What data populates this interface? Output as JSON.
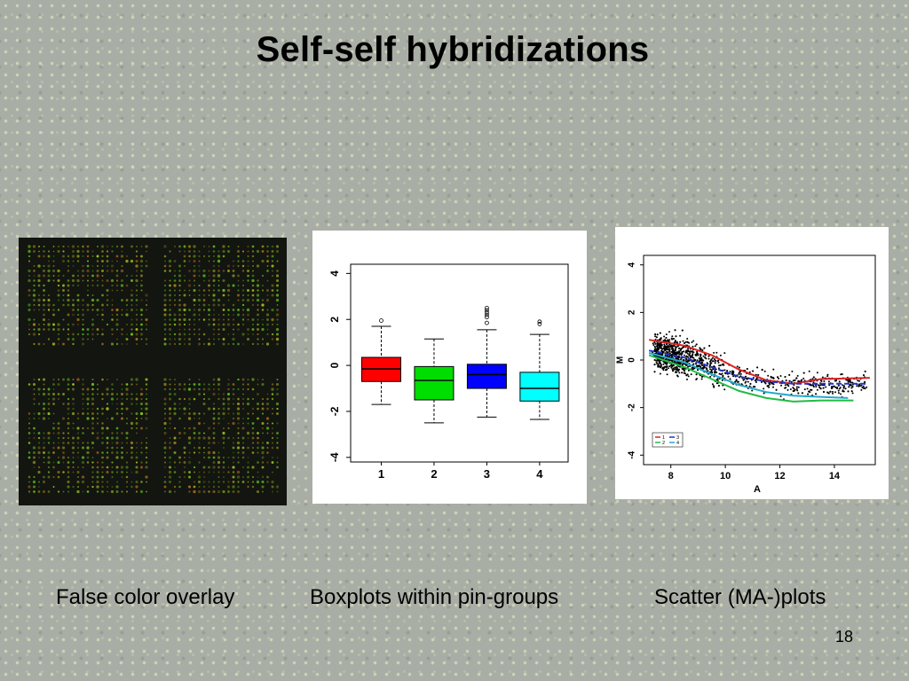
{
  "slide": {
    "title": "Self-self hybridizations",
    "page_number": "18"
  },
  "panels": {
    "overlay_caption": "False color overlay",
    "boxplot_caption": "Boxplots within pin-groups",
    "scatter_caption": "Scatter (MA-)plots"
  },
  "chart_data": [
    {
      "type": "box",
      "categories": [
        "1",
        "2",
        "3",
        "4"
      ],
      "colors": [
        "#ff0000",
        "#00dd00",
        "#0000ff",
        "#00ffff"
      ],
      "boxes": [
        {
          "whisker_low": -1.7,
          "q1": -0.7,
          "median": -0.15,
          "q3": 0.35,
          "whisker_high": 1.7,
          "outliers": [
            1.95
          ]
        },
        {
          "whisker_low": -2.5,
          "q1": -1.5,
          "median": -0.65,
          "q3": -0.05,
          "whisker_high": 1.15,
          "outliers": []
        },
        {
          "whisker_low": -2.25,
          "q1": -1.0,
          "median": -0.4,
          "q3": 0.05,
          "whisker_high": 1.55,
          "outliers": [
            1.85,
            2.1,
            2.2,
            2.3,
            2.4,
            2.5
          ]
        },
        {
          "whisker_low": -2.35,
          "q1": -1.55,
          "median": -1.0,
          "q3": -0.3,
          "whisker_high": 1.35,
          "outliers": [
            1.8,
            1.9
          ]
        }
      ],
      "yticks": [
        "-4",
        "-2",
        "0",
        "2",
        "4"
      ],
      "ylim": [
        -4.2,
        4.4
      ],
      "xlabel": "",
      "ylabel": "",
      "grid": false
    },
    {
      "type": "scatter",
      "xlabel": "A",
      "ylabel": "M",
      "xticks": [
        "8",
        "10",
        "12",
        "14"
      ],
      "yticks": [
        "-4",
        "-2",
        "0",
        "2",
        "4"
      ],
      "xlim": [
        7,
        15.5
      ],
      "ylim": [
        -4.4,
        4.4
      ],
      "legend": {
        "position": "bottom-left",
        "entries": [
          "1",
          "2",
          "3",
          "4"
        ]
      },
      "series": [
        {
          "name": "1",
          "color": "#dd2222",
          "x": [
            7.2,
            8.5,
            9.5,
            10.5,
            11.5,
            12.5,
            13.5,
            15.3
          ],
          "y": [
            0.85,
            0.6,
            0.2,
            -0.4,
            -0.85,
            -1.0,
            -0.8,
            -0.75
          ]
        },
        {
          "name": "2",
          "color": "#22bb44",
          "x": [
            7.2,
            8.5,
            9.5,
            10.5,
            11.5,
            12.5,
            13.5,
            14.7
          ],
          "y": [
            0.2,
            -0.3,
            -0.8,
            -1.3,
            -1.6,
            -1.75,
            -1.7,
            -1.7
          ]
        },
        {
          "name": "3",
          "color": "#2233cc",
          "x": [
            7.2,
            8.5,
            9.5,
            10.5,
            11.5,
            12.5,
            13.5,
            15.2
          ],
          "y": [
            0.4,
            0.1,
            -0.3,
            -0.7,
            -0.9,
            -1.0,
            -1.0,
            -1.0
          ]
        },
        {
          "name": "4",
          "color": "#22aacc",
          "x": [
            7.2,
            8.5,
            9.5,
            10.5,
            11.5,
            12.5,
            13.5,
            14.5
          ],
          "y": [
            0.3,
            -0.1,
            -0.6,
            -1.05,
            -1.35,
            -1.5,
            -1.55,
            -1.6
          ]
        }
      ]
    }
  ]
}
